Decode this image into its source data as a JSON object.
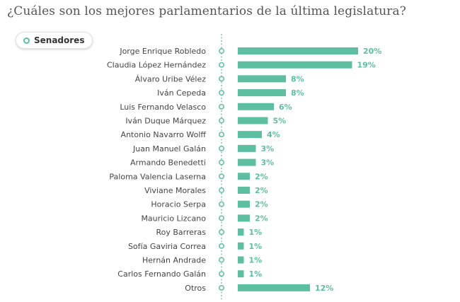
{
  "title": "¿Cuáles son los mejores parlamentarios de la última legislatura?",
  "legend": {
    "label": "Senadores"
  },
  "colors": {
    "bar": "#5cbfa1",
    "label": "#5cbfa1",
    "axis": "#5cbfa1",
    "text": "#444444"
  },
  "chart_data": {
    "type": "bar",
    "orientation": "horizontal",
    "title": "¿Cuáles son los mejores parlamentarios de la última legislatura?",
    "legend": [
      "Senadores"
    ],
    "categories": [
      "Jorge Enrique Robledo",
      "Claudia López Hernández",
      "Álvaro Uribe Vélez",
      "Iván Cepeda",
      "Luis Fernando Velasco",
      "Iván Duque Márquez",
      "Antonio Navarro Wolff",
      "Juan Manuel Galán",
      "Armando Benedetti",
      "Paloma Valencia Laserna",
      "Viviane Morales",
      "Horacio Serpa",
      "Mauricio Lizcano",
      "Roy Barreras",
      "Sofía Gaviria Correa",
      "Hernán Andrade",
      "Carlos Fernando Galán",
      "Otros"
    ],
    "values": [
      20,
      19,
      8,
      8,
      6,
      5,
      4,
      3,
      3,
      2,
      2,
      2,
      2,
      1,
      1,
      1,
      1,
      12
    ],
    "value_labels": [
      "20%",
      "19%",
      "8%",
      "8%",
      "6%",
      "5%",
      "4%",
      "3%",
      "3%",
      "2%",
      "2%",
      "2%",
      "2%",
      "1%",
      "1%",
      "1%",
      "1%",
      "12%"
    ],
    "unit": "%",
    "xlim": [
      0,
      20
    ]
  }
}
